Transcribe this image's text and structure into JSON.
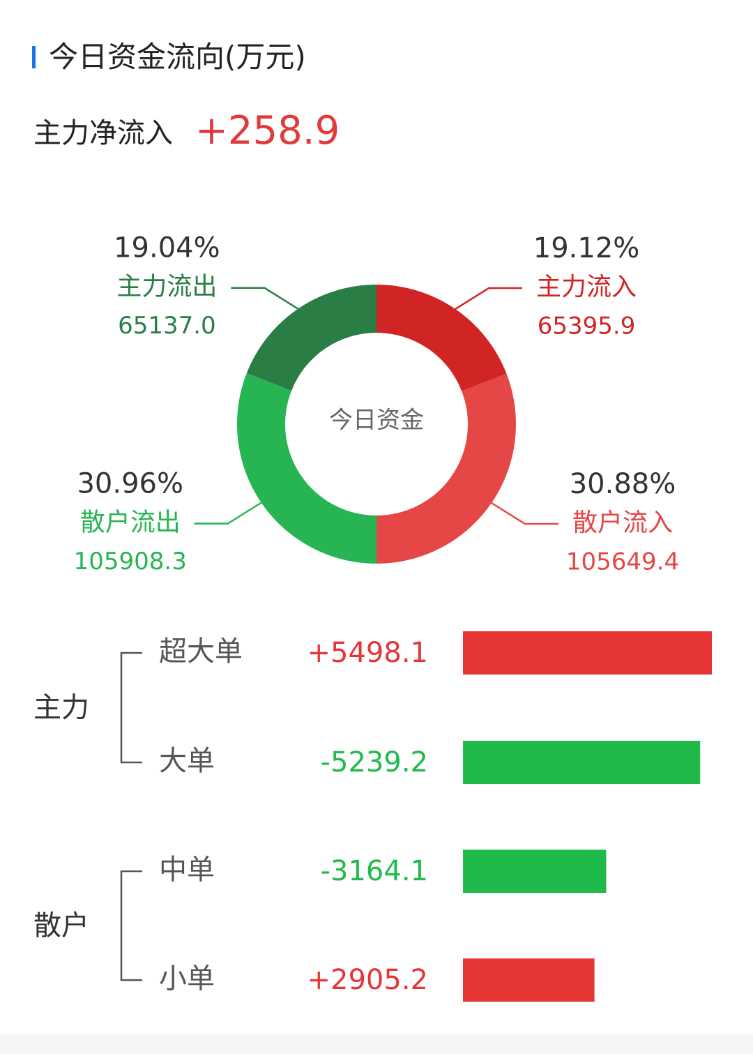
{
  "header": {
    "title": "今日资金流向(万元)",
    "accent_color": "#1a73e8"
  },
  "summary": {
    "net_label": "主力净流入",
    "net_value": "+258.9",
    "net_color": "#e03a3a"
  },
  "chart_data": [
    {
      "type": "pie",
      "center_label": "今日资金",
      "slices": [
        {
          "name": "主力流入",
          "percent": 19.12,
          "percent_text": "19.12%",
          "value": 65395.9,
          "value_text": "65395.9",
          "color": "#d12424",
          "label_color": "#d12424"
        },
        {
          "name": "散户流入",
          "percent": 30.88,
          "percent_text": "30.88%",
          "value": 105649.4,
          "value_text": "105649.4",
          "color": "#e54747",
          "label_color": "#e54747"
        },
        {
          "name": "散户流出",
          "percent": 30.96,
          "percent_text": "30.96%",
          "value": 105908.3,
          "value_text": "105908.3",
          "color": "#26b552",
          "label_color": "#26b552"
        },
        {
          "name": "主力流出",
          "percent": 19.04,
          "percent_text": "19.04%",
          "value": 65137.0,
          "value_text": "65137.0",
          "color": "#2a7d45",
          "label_color": "#2a7d45"
        }
      ]
    },
    {
      "type": "bar",
      "groups": [
        {
          "name": "主力",
          "items": [
            {
              "label": "超大单",
              "value": 5498.1,
              "value_text": "+5498.1",
              "color": "#e53535"
            },
            {
              "label": "大单",
              "value": -5239.2,
              "value_text": "-5239.2",
              "color": "#1fba4a"
            }
          ]
        },
        {
          "name": "散户",
          "items": [
            {
              "label": "中单",
              "value": -3164.1,
              "value_text": "-3164.1",
              "color": "#1fba4a"
            },
            {
              "label": "小单",
              "value": 2905.2,
              "value_text": "+2905.2",
              "color": "#e53535"
            }
          ]
        }
      ]
    }
  ]
}
